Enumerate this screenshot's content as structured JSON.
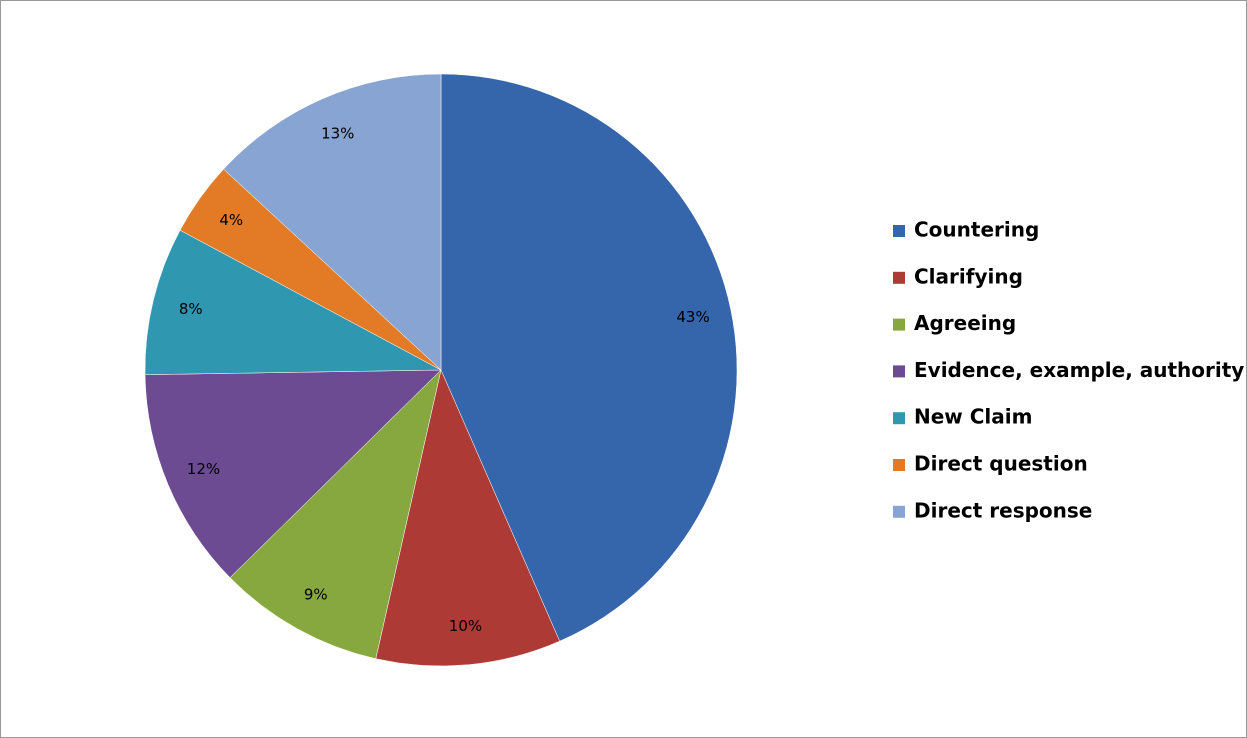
{
  "chart_data": {
    "type": "pie",
    "categories": [
      "Countering",
      "Clarifying",
      "Agreeing",
      "Evidence, example, authority",
      "New Claim",
      "Direct question",
      "Direct response"
    ],
    "values": [
      43,
      10,
      9,
      12,
      8,
      4,
      13
    ],
    "value_labels": [
      "43%",
      "10%",
      "9%",
      "12%",
      "8%",
      "4%",
      "13%"
    ],
    "colors": [
      "#3566ab",
      "#ae3a36",
      "#87a83f",
      "#6d4b93",
      "#2f98b0",
      "#e37b26",
      "#88a4d3"
    ],
    "legend": "right"
  }
}
